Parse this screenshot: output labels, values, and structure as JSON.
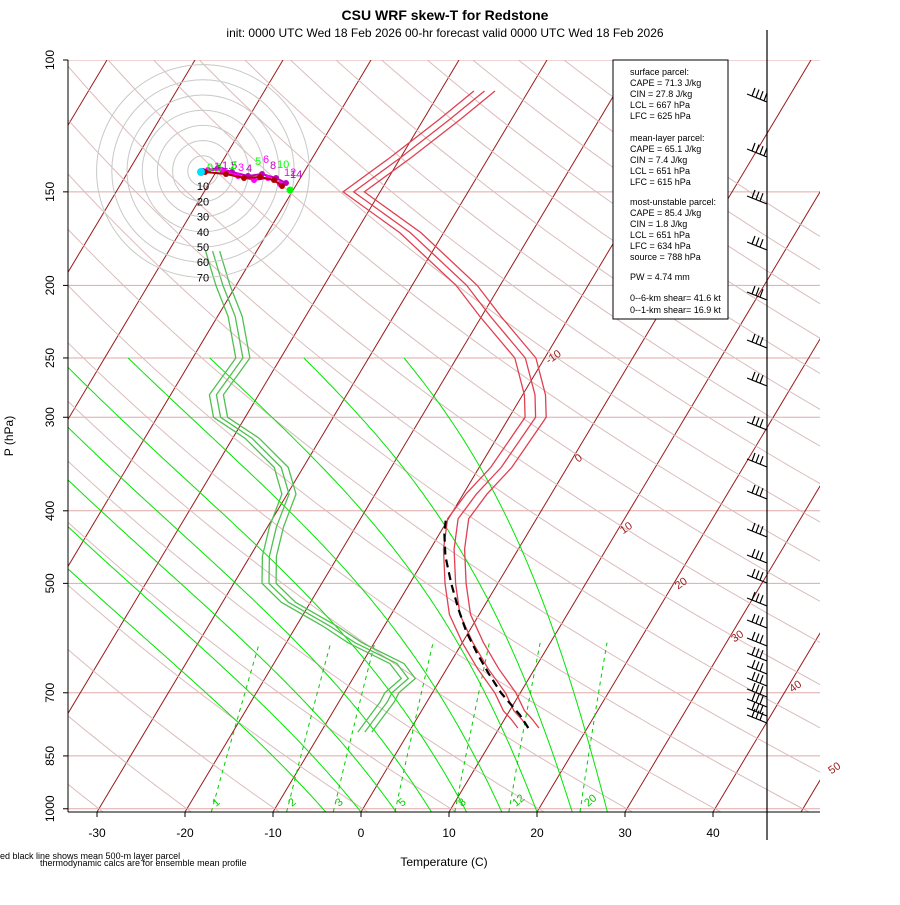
{
  "header": {
    "title": "CSU WRF skew-T for Redstone",
    "subtitle": "init: 0000 UTC Wed 18 Feb 2026     00-hr forecast valid 0000 UTC Wed 18 Feb 2026"
  },
  "footer": {
    "note1": "ed black line shows mean 500-m layer parcel",
    "note2": "thermodynamic calcs are for ensemble mean profile"
  },
  "info_box": {
    "surface_header": "surface parcel:",
    "surface": [
      "CAPE = 71.3 J/kg",
      "CIN = 27.8 J/kg",
      "LCL = 667 hPa",
      "LFC = 625 hPa"
    ],
    "mixed_header": "mean-layer parcel:",
    "mixed": [
      "CAPE = 65.1 J/kg",
      "CIN = 7.4 J/kg",
      "LCL = 651 hPa",
      "LFC = 615 hPa"
    ],
    "mu_header": "most-unstable parcel:",
    "mu": [
      "CAPE = 85.4 J/kg",
      "CIN = 1.8 J/kg",
      "LCL = 651 hPa",
      "LFC = 634 hPa",
      "source = 788 hPa"
    ],
    "pw": "PW =  4.74 mm",
    "shear": [
      "0--6-km shear= 41.6 kt",
      "0--1-km shear= 16.9 kt"
    ]
  },
  "colors": {
    "isotherm": "#9b1b1b",
    "isobar": "#e0a8a8",
    "dry_adiabat": "#dcbcbc",
    "moist_adiabat": "#00e600",
    "mixing_ratio": "#00cc00",
    "temperature": "#e04050",
    "dewpoint": "#50c050",
    "parcel": "#000000",
    "hodo_a": "#c000c0",
    "hodo_b": "#ff00ff",
    "hodo_c": "#00ff00",
    "hodo_d": "#b00000"
  },
  "chart_data": {
    "type": "line",
    "title": "CSU WRF skew-T for Redstone",
    "xlabel": "Temperature (C)",
    "ylabel": "P (hPa)",
    "xlim": [
      -33,
      52
    ],
    "ylim": [
      1010,
      100
    ],
    "x_ticks": [
      -30,
      -20,
      -10,
      0,
      10,
      20,
      30,
      40
    ],
    "y_ticks": [
      100,
      150,
      200,
      250,
      300,
      400,
      500,
      700,
      850,
      1000
    ],
    "isotherm_labels": [
      "-10",
      "0",
      "10",
      "20",
      "30",
      "40",
      "50"
    ],
    "mixing_ratio_labels": [
      "1",
      "2",
      "3",
      "5",
      "8",
      "12",
      "20"
    ],
    "temperature_profile": [
      {
        "p": 780,
        "t": 13.3
      },
      {
        "p": 760,
        "t": 12.0
      },
      {
        "p": 740,
        "t": 10.5
      },
      {
        "p": 700,
        "t": 8.3
      },
      {
        "p": 650,
        "t": 4.7
      },
      {
        "p": 600,
        "t": 1.2
      },
      {
        "p": 550,
        "t": -2.2
      },
      {
        "p": 500,
        "t": -4.8
      },
      {
        "p": 450,
        "t": -7.3
      },
      {
        "p": 410,
        "t": -8.9
      },
      {
        "p": 380,
        "t": -8.5
      },
      {
        "p": 350,
        "t": -7.5
      },
      {
        "p": 300,
        "t": -7.0
      },
      {
        "p": 280,
        "t": -8.6
      },
      {
        "p": 250,
        "t": -12.2
      },
      {
        "p": 220,
        "t": -19.0
      },
      {
        "p": 200,
        "t": -23.8
      },
      {
        "p": 170,
        "t": -33.8
      },
      {
        "p": 150,
        "t": -43.0
      },
      {
        "p": 135,
        "t": -40.0
      },
      {
        "p": 120,
        "t": -37.0
      },
      {
        "p": 110,
        "t": -35.0
      }
    ],
    "dewpoint_profile": [
      {
        "p": 790,
        "t": -5.0
      },
      {
        "p": 760,
        "t": -4.8
      },
      {
        "p": 720,
        "t": -4.5
      },
      {
        "p": 700,
        "t": -4.6
      },
      {
        "p": 670,
        "t": -3.7
      },
      {
        "p": 640,
        "t": -6.0
      },
      {
        "p": 600,
        "t": -12.2
      },
      {
        "p": 570,
        "t": -16.2
      },
      {
        "p": 530,
        "t": -22.5
      },
      {
        "p": 500,
        "t": -26.0
      },
      {
        "p": 460,
        "t": -27.8
      },
      {
        "p": 420,
        "t": -29.0
      },
      {
        "p": 380,
        "t": -29.8
      },
      {
        "p": 350,
        "t": -32.5
      },
      {
        "p": 320,
        "t": -37.8
      },
      {
        "p": 300,
        "t": -42.8
      },
      {
        "p": 280,
        "t": -44.8
      },
      {
        "p": 250,
        "t": -44.3
      },
      {
        "p": 220,
        "t": -48.0
      },
      {
        "p": 200,
        "t": -51.5
      },
      {
        "p": 180,
        "t": -55.0
      }
    ],
    "parcel_profile": [
      {
        "p": 780,
        "t": 13.3
      },
      {
        "p": 750,
        "t": 11.5
      },
      {
        "p": 720,
        "t": 9.3
      },
      {
        "p": 700,
        "t": 7.8
      },
      {
        "p": 660,
        "t": 5.1
      },
      {
        "p": 620,
        "t": 2.4
      },
      {
        "p": 580,
        "t": -0.3
      },
      {
        "p": 540,
        "t": -2.8
      },
      {
        "p": 500,
        "t": -5.3
      },
      {
        "p": 460,
        "t": -7.8
      },
      {
        "p": 430,
        "t": -9.4
      },
      {
        "p": 410,
        "t": -10.3
      }
    ],
    "hodograph_rings": [
      "10",
      "20",
      "30",
      "40",
      "50",
      "60",
      "70"
    ],
    "hodograph_labels": [
      "0.5",
      "1",
      "1.5",
      "2",
      "3",
      "4",
      "5",
      "6",
      "8",
      "10",
      "12",
      "14"
    ]
  }
}
